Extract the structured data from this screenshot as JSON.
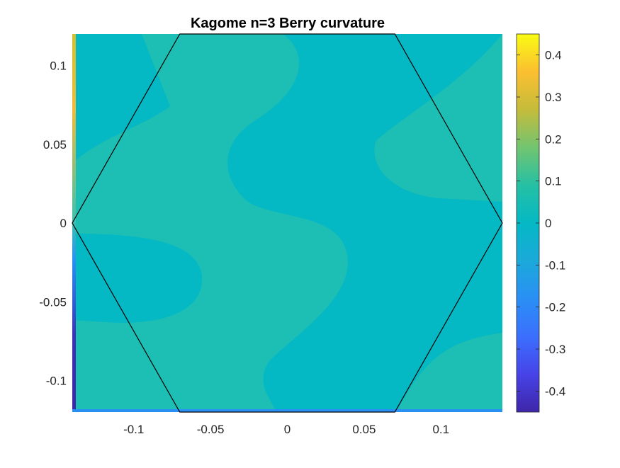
{
  "chart_data": {
    "type": "heatmap",
    "title": "Kagome n=3 Berry curvature",
    "xlabel": "",
    "ylabel": "",
    "xlim": [
      -0.14,
      0.14
    ],
    "ylim": [
      -0.12,
      0.12
    ],
    "x_ticks": [
      -0.1,
      -0.05,
      0,
      0.05,
      0.1
    ],
    "x_tick_labels": [
      "-0.1",
      "-0.05",
      "0",
      "0.05",
      "0.1"
    ],
    "y_ticks": [
      0.1,
      0.05,
      0,
      -0.05,
      -0.1
    ],
    "y_tick_labels": [
      "0.1",
      "0.05",
      "0",
      "-0.05",
      "-0.1"
    ],
    "colorbar": {
      "range": [
        -0.45,
        0.45
      ],
      "ticks": [
        0.4,
        0.3,
        0.2,
        0.1,
        0,
        -0.1,
        -0.2,
        -0.3,
        -0.4
      ],
      "tick_labels": [
        "0.4",
        "0.3",
        "0.2",
        "0.1",
        "0",
        "-0.1",
        "-0.2",
        "-0.3",
        "-0.4"
      ],
      "colormap": "parula"
    },
    "hexagon_vertices": [
      [
        -0.14,
        0
      ],
      [
        -0.07,
        0.12
      ],
      [
        0.07,
        0.12
      ],
      [
        0.14,
        0
      ],
      [
        0.07,
        -0.12
      ],
      [
        -0.07,
        -0.12
      ]
    ],
    "colors": {
      "field_base": "#04b8c4",
      "field_light": "#1dbfb4",
      "hexagon_edge": "#000000"
    }
  }
}
